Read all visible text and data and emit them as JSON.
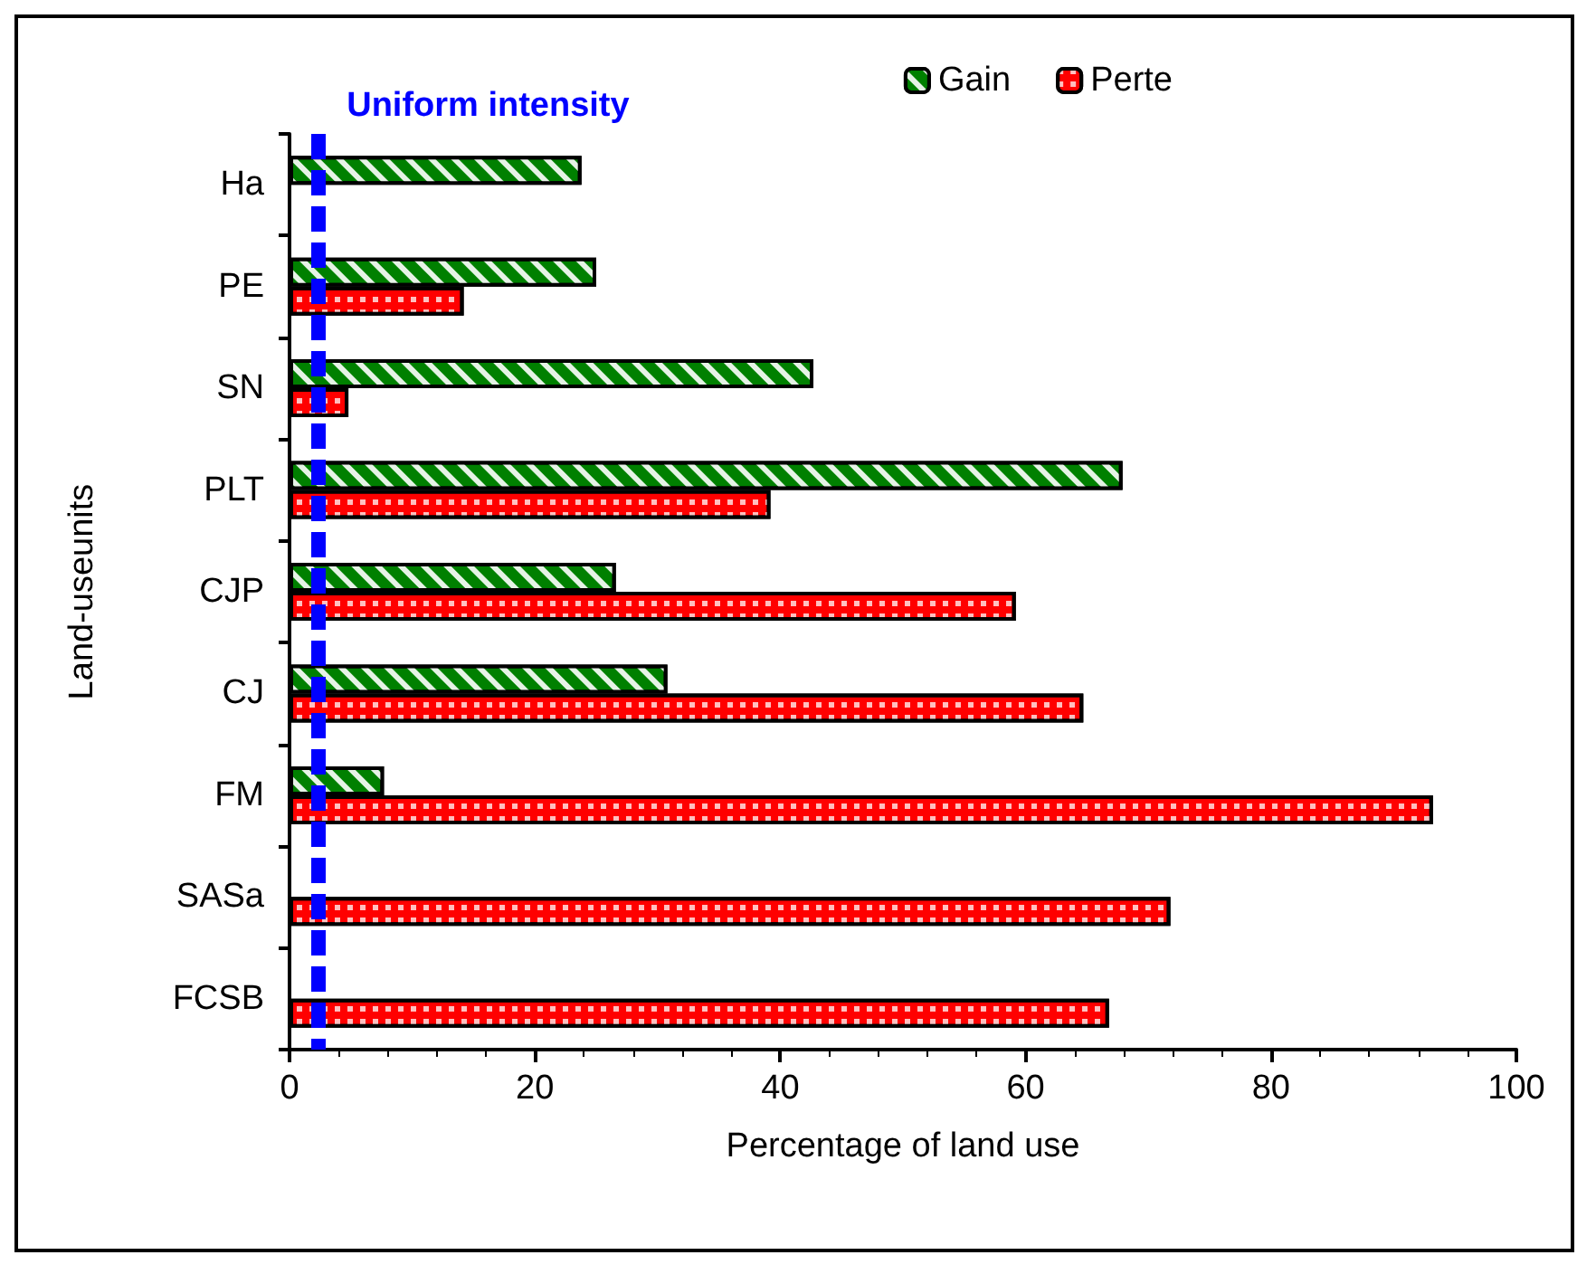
{
  "chart_data": {
    "type": "bar",
    "orientation": "horizontal",
    "xlabel": "Percentage of land use",
    "ylabel": "Land-useunits",
    "categories": [
      "Ha",
      "PE",
      "SN",
      "PLT",
      "CJP",
      "CJ",
      "FM",
      "SASa",
      "FCSB"
    ],
    "series": [
      {
        "name": "Gain",
        "color": "#008000",
        "values": [
          23.8,
          25.0,
          42.7,
          67.9,
          26.6,
          30.8,
          7.7,
          null,
          null
        ]
      },
      {
        "name": "Perte",
        "color": "#ff0000",
        "values": [
          null,
          14.2,
          4.8,
          39.2,
          59.2,
          64.7,
          93.2,
          71.8,
          66.8
        ]
      }
    ],
    "xlim": [
      0,
      100
    ],
    "xticks": [
      0,
      20,
      40,
      60,
      80,
      100
    ],
    "grid": false,
    "legend": "top right",
    "ref_lines": [
      {
        "axis": "x",
        "value": 2.3,
        "label": "Uniform intensity",
        "color": "#0000ff",
        "line_style": "dashed"
      }
    ]
  }
}
